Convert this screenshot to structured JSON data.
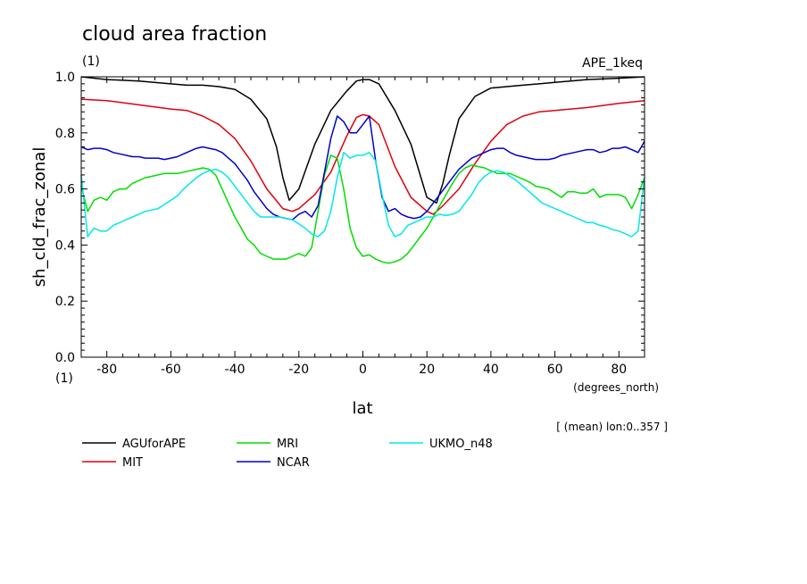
{
  "header": {
    "title": "cloud area fraction",
    "units": "(1)",
    "experiment": "APE_1keq"
  },
  "chart_data": {
    "type": "line",
    "title": "cloud area fraction",
    "xlabel": "lat",
    "x_units": "(degrees_north)",
    "ylabel": "sh_cld_frac_zonal",
    "y_units": "(1)",
    "note": "[ (mean) lon:0..357 ]",
    "xlim": [
      -88,
      88
    ],
    "ylim": [
      0,
      1
    ],
    "x_ticks": [
      -80,
      -60,
      -40,
      -20,
      0,
      20,
      40,
      60,
      80
    ],
    "x_tick_labels": [
      "-80",
      "-60",
      "-40",
      "-20",
      "0",
      "20",
      "40",
      "60",
      "80"
    ],
    "y_ticks": [
      0,
      0.2,
      0.4,
      0.6,
      0.8,
      1.0
    ],
    "y_tick_labels": [
      "0.0",
      "0.2",
      "0.4",
      "0.6",
      "0.8",
      "1.0"
    ],
    "grid": false,
    "legend_position": "bottom",
    "series": [
      {
        "name": "AGUforAPE",
        "color": "#000000",
        "x": [
          -88,
          -80,
          -70,
          -60,
          -55,
          -50,
          -45,
          -40,
          -35,
          -30,
          -27,
          -25,
          -23,
          -20,
          -15,
          -10,
          -5,
          -2,
          0,
          2,
          5,
          10,
          15,
          20,
          23,
          25,
          27,
          30,
          35,
          40,
          45,
          50,
          55,
          60,
          70,
          80,
          88
        ],
        "y": [
          1.0,
          0.99,
          0.985,
          0.975,
          0.97,
          0.97,
          0.965,
          0.955,
          0.92,
          0.85,
          0.75,
          0.64,
          0.56,
          0.6,
          0.76,
          0.88,
          0.95,
          0.985,
          0.99,
          0.99,
          0.975,
          0.88,
          0.76,
          0.57,
          0.55,
          0.62,
          0.72,
          0.85,
          0.93,
          0.96,
          0.965,
          0.97,
          0.975,
          0.98,
          0.99,
          0.995,
          1.0
        ]
      },
      {
        "name": "MIT",
        "color": "#e0000e",
        "x": [
          -88,
          -80,
          -70,
          -60,
          -55,
          -50,
          -45,
          -40,
          -35,
          -30,
          -25,
          -22,
          -20,
          -15,
          -10,
          -5,
          -2,
          0,
          2,
          5,
          10,
          15,
          20,
          22,
          25,
          30,
          35,
          40,
          45,
          50,
          55,
          60,
          70,
          80,
          88
        ],
        "y": [
          0.92,
          0.915,
          0.9,
          0.885,
          0.88,
          0.86,
          0.83,
          0.78,
          0.7,
          0.6,
          0.53,
          0.52,
          0.53,
          0.58,
          0.66,
          0.79,
          0.855,
          0.865,
          0.86,
          0.83,
          0.68,
          0.57,
          0.52,
          0.51,
          0.54,
          0.6,
          0.69,
          0.77,
          0.83,
          0.86,
          0.875,
          0.88,
          0.89,
          0.905,
          0.915
        ]
      },
      {
        "name": "MRI",
        "color": "#00dd00",
        "x": [
          -88,
          -86,
          -84,
          -82,
          -80,
          -78,
          -76,
          -74,
          -72,
          -70,
          -68,
          -66,
          -64,
          -62,
          -60,
          -58,
          -56,
          -54,
          -52,
          -50,
          -48,
          -46,
          -44,
          -42,
          -40,
          -38,
          -36,
          -34,
          -32,
          -30,
          -28,
          -26,
          -24,
          -22,
          -20,
          -18,
          -16,
          -14,
          -12,
          -10,
          -8,
          -6,
          -4,
          -2,
          0,
          2,
          4,
          6,
          8,
          10,
          12,
          14,
          16,
          18,
          20,
          22,
          24,
          26,
          28,
          30,
          32,
          34,
          36,
          38,
          40,
          42,
          44,
          46,
          48,
          50,
          52,
          54,
          56,
          58,
          60,
          62,
          64,
          66,
          68,
          70,
          72,
          74,
          76,
          78,
          80,
          82,
          84,
          86,
          88
        ],
        "y": [
          0.61,
          0.52,
          0.56,
          0.57,
          0.56,
          0.59,
          0.6,
          0.6,
          0.62,
          0.63,
          0.64,
          0.645,
          0.65,
          0.655,
          0.655,
          0.655,
          0.66,
          0.665,
          0.67,
          0.675,
          0.67,
          0.65,
          0.6,
          0.55,
          0.5,
          0.46,
          0.42,
          0.4,
          0.37,
          0.36,
          0.35,
          0.35,
          0.35,
          0.36,
          0.37,
          0.36,
          0.39,
          0.52,
          0.65,
          0.72,
          0.71,
          0.6,
          0.46,
          0.39,
          0.36,
          0.365,
          0.35,
          0.34,
          0.335,
          0.34,
          0.35,
          0.37,
          0.4,
          0.43,
          0.46,
          0.5,
          0.54,
          0.58,
          0.62,
          0.655,
          0.675,
          0.685,
          0.68,
          0.675,
          0.665,
          0.655,
          0.655,
          0.655,
          0.645,
          0.635,
          0.625,
          0.61,
          0.605,
          0.6,
          0.585,
          0.57,
          0.59,
          0.59,
          0.585,
          0.585,
          0.6,
          0.57,
          0.58,
          0.58,
          0.58,
          0.57,
          0.53,
          0.58,
          0.64
        ]
      },
      {
        "name": "NCAR",
        "color": "#0000cc",
        "x": [
          -88,
          -86,
          -84,
          -82,
          -80,
          -78,
          -76,
          -74,
          -72,
          -70,
          -68,
          -66,
          -64,
          -62,
          -60,
          -58,
          -56,
          -54,
          -52,
          -50,
          -48,
          -46,
          -44,
          -42,
          -40,
          -38,
          -36,
          -34,
          -32,
          -30,
          -28,
          -26,
          -24,
          -22,
          -20,
          -18,
          -16,
          -14,
          -12,
          -10,
          -8,
          -6,
          -4,
          -2,
          0,
          2,
          4,
          6,
          8,
          10,
          12,
          14,
          16,
          18,
          20,
          22,
          24,
          26,
          28,
          30,
          32,
          34,
          36,
          38,
          40,
          42,
          44,
          46,
          48,
          50,
          52,
          54,
          56,
          58,
          60,
          62,
          64,
          66,
          68,
          70,
          72,
          74,
          76,
          78,
          80,
          82,
          84,
          86,
          88
        ],
        "y": [
          0.75,
          0.74,
          0.745,
          0.745,
          0.74,
          0.73,
          0.725,
          0.72,
          0.715,
          0.715,
          0.71,
          0.71,
          0.71,
          0.705,
          0.71,
          0.715,
          0.725,
          0.735,
          0.745,
          0.75,
          0.745,
          0.74,
          0.73,
          0.71,
          0.69,
          0.66,
          0.63,
          0.59,
          0.56,
          0.53,
          0.51,
          0.5,
          0.495,
          0.49,
          0.51,
          0.52,
          0.5,
          0.54,
          0.66,
          0.78,
          0.86,
          0.84,
          0.8,
          0.8,
          0.83,
          0.86,
          0.7,
          0.57,
          0.52,
          0.53,
          0.51,
          0.5,
          0.495,
          0.5,
          0.52,
          0.55,
          0.58,
          0.61,
          0.64,
          0.67,
          0.69,
          0.71,
          0.72,
          0.73,
          0.74,
          0.745,
          0.745,
          0.73,
          0.72,
          0.715,
          0.71,
          0.705,
          0.705,
          0.705,
          0.71,
          0.72,
          0.725,
          0.73,
          0.735,
          0.74,
          0.74,
          0.73,
          0.735,
          0.745,
          0.745,
          0.75,
          0.74,
          0.73,
          0.77
        ]
      },
      {
        "name": "UKMO_n48",
        "color": "#00e8e8",
        "x": [
          -88,
          -86,
          -84,
          -82,
          -80,
          -78,
          -76,
          -74,
          -72,
          -70,
          -68,
          -66,
          -64,
          -62,
          -60,
          -58,
          -56,
          -54,
          -52,
          -50,
          -48,
          -46,
          -44,
          -42,
          -40,
          -38,
          -36,
          -34,
          -32,
          -30,
          -28,
          -26,
          -24,
          -22,
          -20,
          -18,
          -16,
          -14,
          -12,
          -10,
          -8,
          -6,
          -4,
          -2,
          0,
          2,
          4,
          6,
          8,
          10,
          12,
          14,
          16,
          18,
          20,
          22,
          24,
          26,
          28,
          30,
          32,
          34,
          36,
          38,
          40,
          42,
          44,
          46,
          48,
          50,
          52,
          54,
          56,
          58,
          60,
          62,
          64,
          66,
          68,
          70,
          72,
          74,
          76,
          78,
          80,
          82,
          84,
          86,
          88
        ],
        "y": [
          0.65,
          0.43,
          0.46,
          0.45,
          0.45,
          0.47,
          0.48,
          0.49,
          0.5,
          0.51,
          0.52,
          0.525,
          0.53,
          0.545,
          0.56,
          0.575,
          0.6,
          0.62,
          0.64,
          0.655,
          0.665,
          0.67,
          0.66,
          0.64,
          0.61,
          0.58,
          0.55,
          0.52,
          0.5,
          0.5,
          0.5,
          0.5,
          0.495,
          0.49,
          0.475,
          0.46,
          0.44,
          0.43,
          0.45,
          0.52,
          0.64,
          0.73,
          0.71,
          0.72,
          0.72,
          0.73,
          0.7,
          0.58,
          0.47,
          0.43,
          0.44,
          0.47,
          0.48,
          0.49,
          0.5,
          0.5,
          0.51,
          0.505,
          0.51,
          0.52,
          0.55,
          0.58,
          0.62,
          0.645,
          0.66,
          0.665,
          0.66,
          0.645,
          0.63,
          0.61,
          0.59,
          0.57,
          0.55,
          0.54,
          0.53,
          0.52,
          0.51,
          0.5,
          0.49,
          0.48,
          0.48,
          0.47,
          0.465,
          0.455,
          0.45,
          0.44,
          0.43,
          0.45,
          0.64
        ]
      }
    ]
  }
}
